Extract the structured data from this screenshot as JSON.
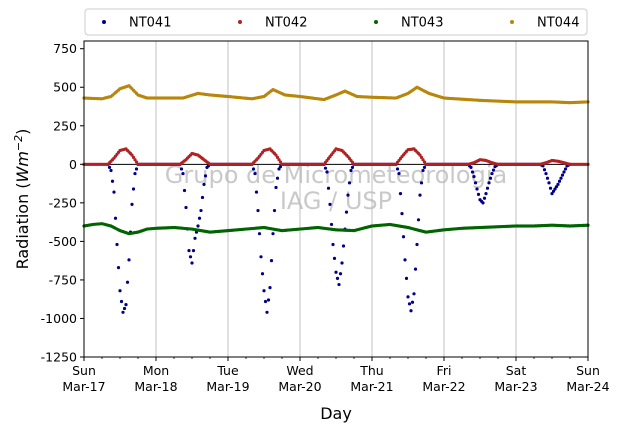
{
  "chart_data": {
    "type": "scatter",
    "xlabel": "Day",
    "ylabel": "Radiation (Wm⁻²)",
    "ylabel_parts": {
      "prefix": "Radiation (",
      "unit": "Wm",
      "exponent": "−2",
      "suffix": ")"
    },
    "ylim": [
      -1250,
      800
    ],
    "yticks": [
      -1250,
      -1000,
      -750,
      -500,
      -250,
      0,
      250,
      500,
      750
    ],
    "xlim": [
      "2024-03-17",
      "2024-03-24"
    ],
    "xticks": [
      {
        "date": "2024-03-17",
        "weekday": "Sun",
        "label": "Mar-17"
      },
      {
        "date": "2024-03-18",
        "weekday": "Mon",
        "label": "Mar-18"
      },
      {
        "date": "2024-03-19",
        "weekday": "Tue",
        "label": "Mar-19"
      },
      {
        "date": "2024-03-20",
        "weekday": "Wed",
        "label": "Mar-20"
      },
      {
        "date": "2024-03-21",
        "weekday": "Thu",
        "label": "Mar-21"
      },
      {
        "date": "2024-03-22",
        "weekday": "Fri",
        "label": "Mar-22"
      },
      {
        "date": "2024-03-23",
        "weekday": "Sat",
        "label": "Mar-23"
      },
      {
        "date": "2024-03-24",
        "weekday": "Sun",
        "label": "Mar-24"
      }
    ],
    "grid": "vertical-at-day-ticks",
    "zero_line": true,
    "legend_position": "top, above plot",
    "watermark": [
      "Grupo de Micrometeorologia",
      "IAG / USP"
    ],
    "series": [
      {
        "name": "NT041",
        "color": "#00008b",
        "points": [
          [
            "2024-03-17T08:00",
            0
          ],
          [
            "2024-03-17T09:00",
            -40
          ],
          [
            "2024-03-17T10:00",
            -180
          ],
          [
            "2024-03-17T11:00",
            -520
          ],
          [
            "2024-03-17T12:00",
            -820
          ],
          [
            "2024-03-17T13:00",
            -960
          ],
          [
            "2024-03-17T14:00",
            -910
          ],
          [
            "2024-03-17T15:00",
            -620
          ],
          [
            "2024-03-17T16:00",
            -260
          ],
          [
            "2024-03-17T17:00",
            -60
          ],
          [
            "2024-03-17T18:00",
            0
          ],
          [
            "2024-03-18T08:00",
            0
          ],
          [
            "2024-03-18T09:00",
            -60
          ],
          [
            "2024-03-18T10:00",
            -280
          ],
          [
            "2024-03-18T11:00",
            -560
          ],
          [
            "2024-03-18T12:00",
            -640
          ],
          [
            "2024-03-18T13:00",
            -480
          ],
          [
            "2024-03-18T14:00",
            -400
          ],
          [
            "2024-03-18T15:00",
            -300
          ],
          [
            "2024-03-18T16:00",
            -130
          ],
          [
            "2024-03-18T17:00",
            -20
          ],
          [
            "2024-03-18T18:00",
            0
          ],
          [
            "2024-03-19T08:00",
            0
          ],
          [
            "2024-03-19T09:00",
            -60
          ],
          [
            "2024-03-19T10:00",
            -300
          ],
          [
            "2024-03-19T11:00",
            -600
          ],
          [
            "2024-03-19T12:00",
            -820
          ],
          [
            "2024-03-19T13:00",
            -960
          ],
          [
            "2024-03-19T14:00",
            -800
          ],
          [
            "2024-03-19T15:00",
            -450
          ],
          [
            "2024-03-19T16:00",
            -150
          ],
          [
            "2024-03-19T17:00",
            -30
          ],
          [
            "2024-03-19T18:00",
            0
          ],
          [
            "2024-03-20T08:00",
            0
          ],
          [
            "2024-03-20T09:00",
            -50
          ],
          [
            "2024-03-20T10:00",
            -260
          ],
          [
            "2024-03-20T11:00",
            -520
          ],
          [
            "2024-03-20T12:00",
            -700
          ],
          [
            "2024-03-20T13:00",
            -780
          ],
          [
            "2024-03-20T14:00",
            -640
          ],
          [
            "2024-03-20T15:00",
            -420
          ],
          [
            "2024-03-20T16:00",
            -200
          ],
          [
            "2024-03-20T17:00",
            -40
          ],
          [
            "2024-03-20T18:00",
            0
          ],
          [
            "2024-03-21T08:00",
            0
          ],
          [
            "2024-03-21T09:00",
            -60
          ],
          [
            "2024-03-21T10:00",
            -320
          ],
          [
            "2024-03-21T11:00",
            -620
          ],
          [
            "2024-03-21T12:00",
            -860
          ],
          [
            "2024-03-21T13:00",
            -950
          ],
          [
            "2024-03-21T14:00",
            -840
          ],
          [
            "2024-03-21T15:00",
            -520
          ],
          [
            "2024-03-21T16:00",
            -200
          ],
          [
            "2024-03-21T17:00",
            -40
          ],
          [
            "2024-03-21T18:00",
            0
          ],
          [
            "2024-03-22T08:00",
            0
          ],
          [
            "2024-03-22T09:00",
            -20
          ],
          [
            "2024-03-22T10:00",
            -80
          ],
          [
            "2024-03-22T11:00",
            -160
          ],
          [
            "2024-03-22T12:00",
            -230
          ],
          [
            "2024-03-22T13:00",
            -250
          ],
          [
            "2024-03-22T14:00",
            -190
          ],
          [
            "2024-03-22T15:00",
            -120
          ],
          [
            "2024-03-22T16:00",
            -60
          ],
          [
            "2024-03-22T17:00",
            -15
          ],
          [
            "2024-03-22T18:00",
            0
          ],
          [
            "2024-03-23T08:00",
            0
          ],
          [
            "2024-03-23T09:00",
            -10
          ],
          [
            "2024-03-23T10:00",
            -60
          ],
          [
            "2024-03-23T11:00",
            -120
          ],
          [
            "2024-03-23T12:00",
            -190
          ],
          [
            "2024-03-23T13:00",
            -160
          ],
          [
            "2024-03-23T14:00",
            -130
          ],
          [
            "2024-03-23T15:00",
            -90
          ],
          [
            "2024-03-23T16:00",
            -50
          ],
          [
            "2024-03-23T17:00",
            -10
          ],
          [
            "2024-03-23T18:00",
            0
          ]
        ]
      },
      {
        "name": "NT042",
        "color": "#b22222",
        "points": [
          [
            "2024-03-17T00:00",
            0
          ],
          [
            "2024-03-17T08:00",
            0
          ],
          [
            "2024-03-17T10:00",
            40
          ],
          [
            "2024-03-17T12:00",
            90
          ],
          [
            "2024-03-17T14:00",
            100
          ],
          [
            "2024-03-17T16:00",
            60
          ],
          [
            "2024-03-17T18:00",
            0
          ],
          [
            "2024-03-18T08:00",
            0
          ],
          [
            "2024-03-18T10:00",
            30
          ],
          [
            "2024-03-18T12:00",
            70
          ],
          [
            "2024-03-18T14:00",
            60
          ],
          [
            "2024-03-18T16:00",
            30
          ],
          [
            "2024-03-18T18:00",
            0
          ],
          [
            "2024-03-19T08:00",
            0
          ],
          [
            "2024-03-19T10:00",
            40
          ],
          [
            "2024-03-19T12:00",
            90
          ],
          [
            "2024-03-19T14:00",
            100
          ],
          [
            "2024-03-19T16:00",
            60
          ],
          [
            "2024-03-19T18:00",
            0
          ],
          [
            "2024-03-20T08:00",
            0
          ],
          [
            "2024-03-20T10:00",
            50
          ],
          [
            "2024-03-20T12:00",
            100
          ],
          [
            "2024-03-20T14:00",
            90
          ],
          [
            "2024-03-20T16:00",
            50
          ],
          [
            "2024-03-20T18:00",
            0
          ],
          [
            "2024-03-21T08:00",
            0
          ],
          [
            "2024-03-21T10:00",
            50
          ],
          [
            "2024-03-21T12:00",
            95
          ],
          [
            "2024-03-21T14:00",
            100
          ],
          [
            "2024-03-21T16:00",
            60
          ],
          [
            "2024-03-21T18:00",
            0
          ],
          [
            "2024-03-22T08:00",
            0
          ],
          [
            "2024-03-22T10:00",
            10
          ],
          [
            "2024-03-22T12:00",
            30
          ],
          [
            "2024-03-22T14:00",
            25
          ],
          [
            "2024-03-22T16:00",
            10
          ],
          [
            "2024-03-22T18:00",
            0
          ],
          [
            "2024-03-23T08:00",
            0
          ],
          [
            "2024-03-23T10:00",
            10
          ],
          [
            "2024-03-23T12:00",
            25
          ],
          [
            "2024-03-23T14:00",
            20
          ],
          [
            "2024-03-23T16:00",
            10
          ],
          [
            "2024-03-23T18:00",
            0
          ],
          [
            "2024-03-24T00:00",
            0
          ]
        ]
      },
      {
        "name": "NT043",
        "color": "#006400",
        "points": [
          [
            "2024-03-17T00:00",
            -400
          ],
          [
            "2024-03-17T03:00",
            -390
          ],
          [
            "2024-03-17T06:00",
            -385
          ],
          [
            "2024-03-17T09:00",
            -400
          ],
          [
            "2024-03-17T12:00",
            -430
          ],
          [
            "2024-03-17T15:00",
            -450
          ],
          [
            "2024-03-17T18:00",
            -440
          ],
          [
            "2024-03-17T21:00",
            -420
          ],
          [
            "2024-03-18T00:00",
            -415
          ],
          [
            "2024-03-18T06:00",
            -410
          ],
          [
            "2024-03-18T12:00",
            -420
          ],
          [
            "2024-03-18T18:00",
            -440
          ],
          [
            "2024-03-19T00:00",
            -430
          ],
          [
            "2024-03-19T06:00",
            -420
          ],
          [
            "2024-03-19T12:00",
            -410
          ],
          [
            "2024-03-19T18:00",
            -430
          ],
          [
            "2024-03-20T00:00",
            -420
          ],
          [
            "2024-03-20T06:00",
            -410
          ],
          [
            "2024-03-20T12:00",
            -425
          ],
          [
            "2024-03-20T18:00",
            -430
          ],
          [
            "2024-03-21T00:00",
            -400
          ],
          [
            "2024-03-21T06:00",
            -390
          ],
          [
            "2024-03-21T12:00",
            -410
          ],
          [
            "2024-03-21T18:00",
            -440
          ],
          [
            "2024-03-22T00:00",
            -425
          ],
          [
            "2024-03-22T06:00",
            -415
          ],
          [
            "2024-03-22T12:00",
            -410
          ],
          [
            "2024-03-22T18:00",
            -405
          ],
          [
            "2024-03-23T00:00",
            -400
          ],
          [
            "2024-03-23T06:00",
            -400
          ],
          [
            "2024-03-23T12:00",
            -395
          ],
          [
            "2024-03-23T18:00",
            -400
          ],
          [
            "2024-03-24T00:00",
            -395
          ]
        ]
      },
      {
        "name": "NT044",
        "color": "#b8860b",
        "points": [
          [
            "2024-03-17T00:00",
            430
          ],
          [
            "2024-03-17T06:00",
            425
          ],
          [
            "2024-03-17T09:00",
            440
          ],
          [
            "2024-03-17T12:00",
            490
          ],
          [
            "2024-03-17T15:00",
            510
          ],
          [
            "2024-03-17T18:00",
            450
          ],
          [
            "2024-03-17T21:00",
            430
          ],
          [
            "2024-03-18T00:00",
            430
          ],
          [
            "2024-03-18T09:00",
            430
          ],
          [
            "2024-03-18T14:00",
            460
          ],
          [
            "2024-03-18T18:00",
            450
          ],
          [
            "2024-03-19T00:00",
            440
          ],
          [
            "2024-03-19T08:00",
            425
          ],
          [
            "2024-03-19T12:00",
            440
          ],
          [
            "2024-03-19T15:00",
            485
          ],
          [
            "2024-03-19T19:00",
            450
          ],
          [
            "2024-03-20T00:00",
            440
          ],
          [
            "2024-03-20T08:00",
            420
          ],
          [
            "2024-03-20T12:00",
            450
          ],
          [
            "2024-03-20T15:00",
            475
          ],
          [
            "2024-03-20T19:00",
            440
          ],
          [
            "2024-03-21T00:00",
            435
          ],
          [
            "2024-03-21T08:00",
            430
          ],
          [
            "2024-03-21T12:00",
            460
          ],
          [
            "2024-03-21T15:00",
            500
          ],
          [
            "2024-03-21T19:00",
            460
          ],
          [
            "2024-03-22T00:00",
            430
          ],
          [
            "2024-03-22T12:00",
            415
          ],
          [
            "2024-03-22T18:00",
            410
          ],
          [
            "2024-03-23T00:00",
            405
          ],
          [
            "2024-03-23T12:00",
            405
          ],
          [
            "2024-03-23T18:00",
            400
          ],
          [
            "2024-03-24T00:00",
            405
          ]
        ]
      }
    ]
  }
}
